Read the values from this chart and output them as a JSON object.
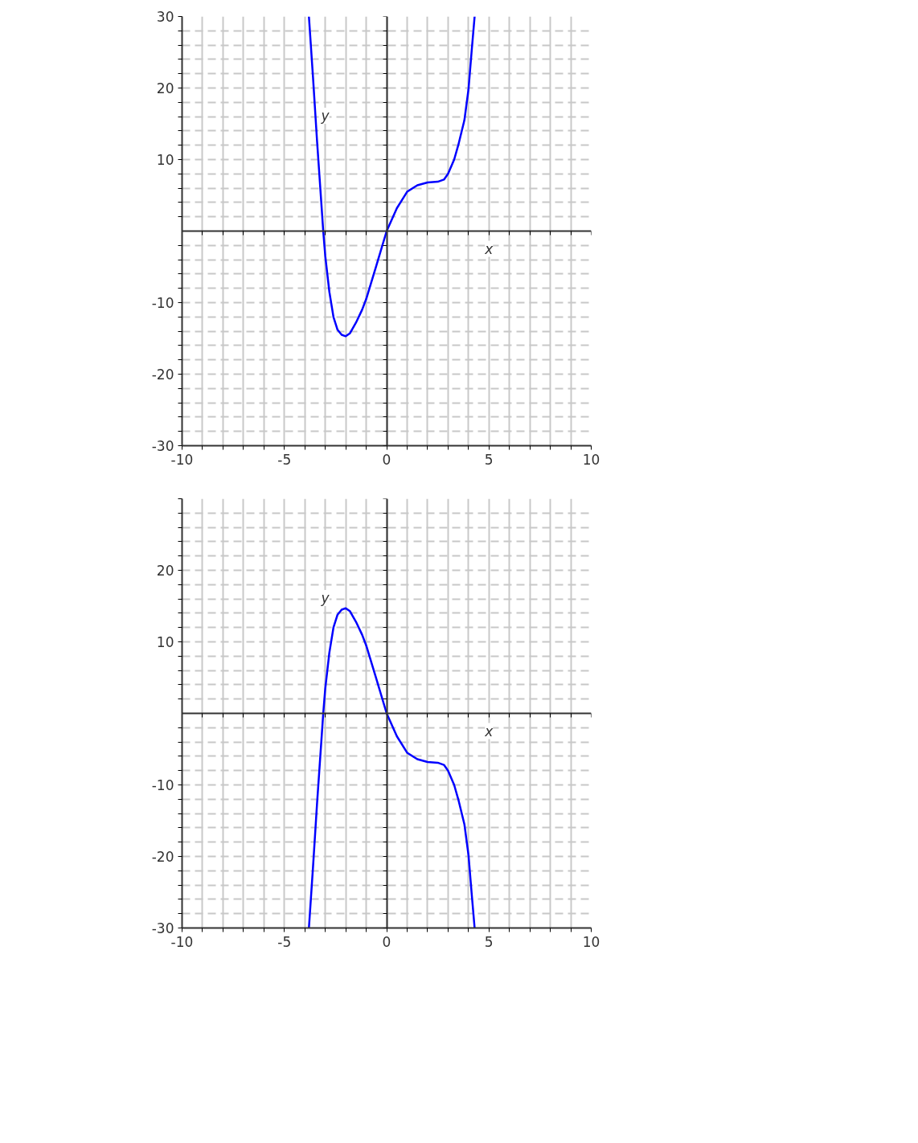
{
  "chart_data": [
    {
      "type": "line",
      "xlabel": "x",
      "ylabel": "y",
      "xlim": [
        -10,
        10
      ],
      "ylim": [
        -30,
        30
      ],
      "xticks": [
        -10,
        {
          "value": -9,
          "label": null
        },
        {
          "value": -8,
          "label": null
        },
        {
          "value": -7,
          "label": null
        },
        {
          "value": -6,
          "label": null
        },
        -5,
        {
          "value": -4,
          "label": null
        },
        {
          "value": -3,
          "label": null
        },
        {
          "value": -2,
          "label": null
        },
        {
          "value": -1,
          "label": null
        },
        0,
        {
          "value": 1,
          "label": null
        },
        {
          "value": 2,
          "label": null
        },
        {
          "value": 3,
          "label": null
        },
        {
          "value": 4,
          "label": null
        },
        5,
        {
          "value": 6,
          "label": null
        },
        {
          "value": 7,
          "label": null
        },
        {
          "value": 8,
          "label": null
        },
        {
          "value": 9,
          "label": null
        },
        10
      ],
      "yticks": [
        -30,
        {
          "value": -28,
          "label": null
        },
        {
          "value": -26,
          "label": null
        },
        {
          "value": -24,
          "label": null
        },
        {
          "value": -22,
          "label": null
        },
        -20,
        {
          "value": -18,
          "label": null
        },
        {
          "value": -16,
          "label": null
        },
        {
          "value": -14,
          "label": null
        },
        {
          "value": -12,
          "label": null
        },
        -10,
        {
          "value": -8,
          "label": null
        },
        {
          "value": -6,
          "label": null
        },
        {
          "value": -4,
          "label": null
        },
        {
          "value": -2,
          "label": null
        },
        {
          "value": 2,
          "label": null
        },
        {
          "value": 4,
          "label": null
        },
        {
          "value": 6,
          "label": null
        },
        {
          "value": 8,
          "label": null
        },
        10,
        {
          "value": 12,
          "label": null
        },
        {
          "value": 14,
          "label": null
        },
        {
          "value": 16,
          "label": null
        },
        {
          "value": 18,
          "label": null
        },
        20,
        {
          "value": 22,
          "label": null
        },
        {
          "value": 24,
          "label": null
        },
        {
          "value": 26,
          "label": null
        },
        {
          "value": 28,
          "label": null
        },
        30
      ],
      "grid": true,
      "x": [
        -3.8,
        -3.6,
        -3.4,
        -3.2,
        -3.1,
        -3.0,
        -2.8,
        -2.6,
        -2.4,
        -2.2,
        -2.0,
        -1.8,
        -1.5,
        -1.2,
        -1.0,
        -0.5,
        0,
        0.5,
        1.0,
        1.5,
        2.0,
        2.5,
        2.8,
        3.0,
        3.3,
        3.5,
        3.8,
        4.0,
        4.15,
        4.3
      ],
      "series": [
        {
          "color": "#0000ff",
          "values": [
            30,
            21.5,
            12.5,
            4.2,
            0,
            -3.5,
            -8.5,
            -12,
            -13.8,
            -14.5,
            -14.7,
            -14.3,
            -12.8,
            -11,
            -9.5,
            -4.8,
            0,
            3.2,
            5.5,
            6.4,
            6.8,
            6.9,
            7.2,
            8.0,
            10,
            12,
            15.5,
            19.8,
            25,
            30
          ]
        }
      ]
    },
    {
      "type": "line",
      "xlabel": "x",
      "ylabel": "y",
      "xlim": [
        -10,
        10
      ],
      "ylim": [
        -30,
        30
      ],
      "xticks": [
        -10,
        {
          "value": -9,
          "label": null
        },
        {
          "value": -8,
          "label": null
        },
        {
          "value": -7,
          "label": null
        },
        {
          "value": -6,
          "label": null
        },
        -5,
        {
          "value": -4,
          "label": null
        },
        {
          "value": -3,
          "label": null
        },
        {
          "value": -2,
          "label": null
        },
        {
          "value": -1,
          "label": null
        },
        0,
        {
          "value": 1,
          "label": null
        },
        {
          "value": 2,
          "label": null
        },
        {
          "value": 3,
          "label": null
        },
        {
          "value": 4,
          "label": null
        },
        5,
        {
          "value": 6,
          "label": null
        },
        {
          "value": 7,
          "label": null
        },
        {
          "value": 8,
          "label": null
        },
        {
          "value": 9,
          "label": null
        },
        10
      ],
      "yticks": [
        -30,
        {
          "value": -28,
          "label": null
        },
        {
          "value": -26,
          "label": null
        },
        {
          "value": -24,
          "label": null
        },
        {
          "value": -22,
          "label": null
        },
        -20,
        {
          "value": -18,
          "label": null
        },
        {
          "value": -16,
          "label": null
        },
        {
          "value": -14,
          "label": null
        },
        {
          "value": -12,
          "label": null
        },
        -10,
        {
          "value": -8,
          "label": null
        },
        {
          "value": -6,
          "label": null
        },
        {
          "value": -4,
          "label": null
        },
        {
          "value": -2,
          "label": null
        },
        {
          "value": 2,
          "label": null
        },
        {
          "value": 4,
          "label": null
        },
        {
          "value": 6,
          "label": null
        },
        {
          "value": 8,
          "label": null
        },
        10,
        {
          "value": 12,
          "label": null
        },
        {
          "value": 14,
          "label": null
        },
        {
          "value": 16,
          "label": null
        },
        {
          "value": 18,
          "label": null
        },
        20,
        {
          "value": 22,
          "label": null
        },
        {
          "value": 24,
          "label": null
        },
        {
          "value": 26,
          "label": null
        },
        {
          "value": 28,
          "label": null
        },
        {
          "value": 30,
          "label": null
        }
      ],
      "grid": true,
      "x": [
        -3.8,
        -3.6,
        -3.4,
        -3.2,
        -3.1,
        -3.0,
        -2.8,
        -2.6,
        -2.4,
        -2.2,
        -2.0,
        -1.8,
        -1.5,
        -1.2,
        -1.0,
        -0.5,
        0,
        0.5,
        1.0,
        1.5,
        2.0,
        2.5,
        2.8,
        3.0,
        3.3,
        3.5,
        3.8,
        4.0,
        4.15,
        4.3
      ],
      "series": [
        {
          "color": "#0000ff",
          "values": [
            -30,
            -21.5,
            -12.5,
            -4.2,
            0,
            3.5,
            8.5,
            12,
            13.8,
            14.5,
            14.7,
            14.3,
            12.8,
            11,
            9.5,
            4.8,
            0,
            -3.2,
            -5.5,
            -6.4,
            -6.8,
            -6.9,
            -7.2,
            -8.0,
            -10,
            -12,
            -15.5,
            -19.8,
            -25,
            -30
          ]
        }
      ]
    }
  ]
}
